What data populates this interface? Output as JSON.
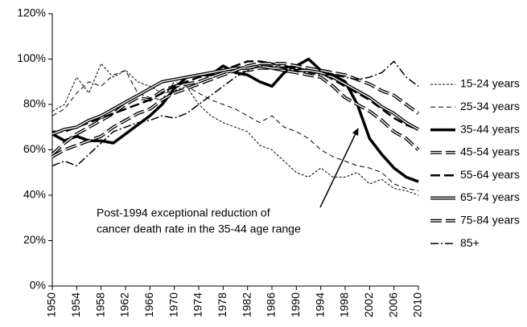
{
  "chart_data": {
    "type": "line",
    "annotation": [
      "Post-1994 exceptional reduction of",
      "cancer death rate in the 35-44 age range"
    ],
    "x": [
      1950,
      1952,
      1954,
      1956,
      1958,
      1960,
      1962,
      1964,
      1966,
      1968,
      1970,
      1972,
      1974,
      1976,
      1978,
      1980,
      1982,
      1984,
      1986,
      1988,
      1990,
      1992,
      1994,
      1996,
      1998,
      2000,
      2002,
      2004,
      2006,
      2008,
      2010
    ],
    "xlim": [
      1950,
      2010
    ],
    "xticks": [
      1950,
      1954,
      1958,
      1962,
      1966,
      1970,
      1974,
      1978,
      1982,
      1986,
      1990,
      1994,
      1998,
      2002,
      2006,
      2010
    ],
    "ylim": [
      0,
      120
    ],
    "yticks": [
      {
        "value": 0,
        "label": "0%"
      },
      {
        "value": 20,
        "label": "20%"
      },
      {
        "value": 40,
        "label": "40%"
      },
      {
        "value": 60,
        "label": "60%"
      },
      {
        "value": 80,
        "label": "80%"
      },
      {
        "value": 100,
        "label": "100%"
      },
      {
        "value": 120,
        "label": "120%"
      }
    ],
    "series": [
      {
        "name": "15-24 years",
        "color": "#000000",
        "width": 1,
        "dash": "3,2",
        "double": false,
        "values": [
          77,
          80,
          92,
          85,
          98,
          92,
          95,
          90,
          88,
          85,
          86,
          88,
          80,
          75,
          72,
          70,
          68,
          62,
          60,
          55,
          50,
          48,
          52,
          48,
          48,
          50,
          45,
          47,
          43,
          42,
          40
        ]
      },
      {
        "name": "25-34 years",
        "color": "#000000",
        "width": 1,
        "dash": "6,4",
        "double": false,
        "values": [
          75,
          78,
          85,
          90,
          88,
          93,
          95,
          85,
          83,
          82,
          90,
          88,
          85,
          82,
          80,
          78,
          75,
          72,
          75,
          70,
          68,
          65,
          60,
          57,
          55,
          53,
          52,
          50,
          45,
          43,
          42
        ]
      },
      {
        "name": "35-44 years",
        "color": "#000000",
        "width": 3.5,
        "dash": "none",
        "double": false,
        "values": [
          67,
          64,
          66,
          64,
          64,
          63,
          67,
          71,
          75,
          80,
          87,
          92,
          93,
          93,
          97,
          94,
          93,
          90,
          88,
          94,
          97,
          100,
          95,
          93,
          90,
          80,
          65,
          58,
          52,
          48,
          46
        ]
      },
      {
        "name": "45-54 years",
        "color": "#000000",
        "width": 4,
        "dash": "14,5",
        "double": true,
        "values": [
          58,
          63,
          67,
          70,
          73,
          76,
          80,
          83,
          82,
          86,
          88,
          89,
          90,
          92,
          94,
          95,
          95,
          96,
          96,
          95,
          94,
          93,
          92,
          88,
          83,
          80,
          77,
          73,
          68,
          65,
          60
        ]
      },
      {
        "name": "55-64 years",
        "color": "#000000",
        "width": 2.5,
        "dash": "12,5",
        "double": false,
        "values": [
          68,
          68,
          70,
          72,
          74,
          76,
          78,
          80,
          82,
          85,
          88,
          90,
          92,
          93,
          95,
          97,
          99,
          99,
          98,
          97,
          96,
          95,
          94,
          91,
          88,
          85,
          82,
          78,
          74,
          71,
          69
        ]
      },
      {
        "name": "65-74 years",
        "color": "#000000",
        "width": 4,
        "dash": "none",
        "double": true,
        "values": [
          67,
          69,
          70,
          73,
          75,
          78,
          81,
          84,
          87,
          90,
          91,
          92,
          93,
          94,
          95,
          96,
          96,
          97,
          96,
          96,
          95,
          95,
          94,
          92,
          89,
          86,
          83,
          79,
          76,
          72,
          69
        ]
      },
      {
        "name": "75-84 years",
        "color": "#000000",
        "width": 4,
        "dash": "14,5",
        "double": true,
        "values": [
          57,
          60,
          62,
          64,
          66,
          70,
          73,
          76,
          78,
          82,
          85,
          87,
          89,
          91,
          93,
          95,
          97,
          98,
          98,
          98,
          97,
          96,
          95,
          94,
          93,
          91,
          89,
          86,
          84,
          80,
          76
        ]
      },
      {
        "name": "85+",
        "color": "#000000",
        "width": 1.5,
        "dash": "10,3,2,3",
        "double": false,
        "values": [
          53,
          55,
          53,
          58,
          63,
          68,
          70,
          72,
          73,
          75,
          74,
          76,
          80,
          84,
          88,
          92,
          95,
          97,
          97,
          96,
          95,
          94,
          93,
          93,
          92,
          91,
          92,
          94,
          99,
          92,
          88
        ]
      }
    ]
  }
}
